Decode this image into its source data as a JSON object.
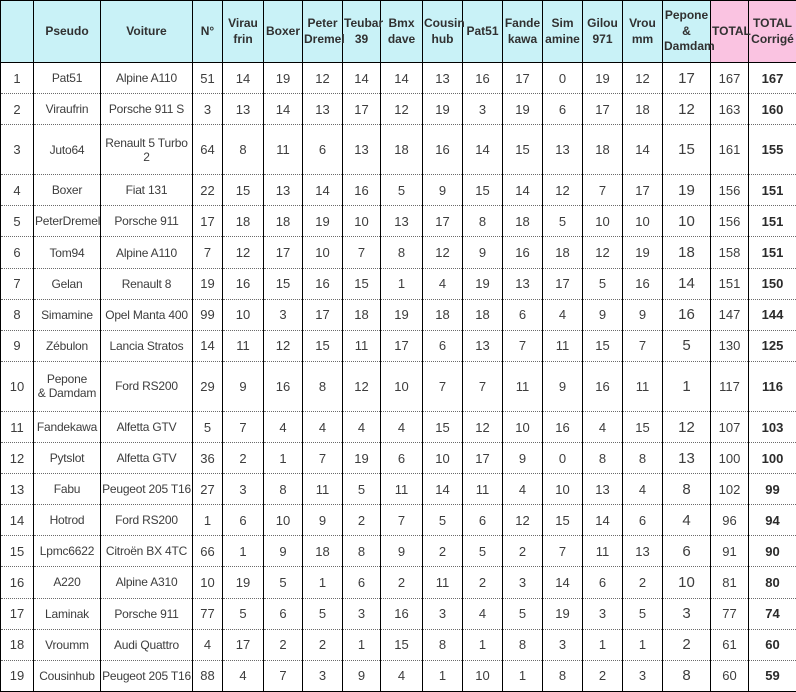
{
  "colors": {
    "header_cyan": "#c9f2f7",
    "header_pink": "#fac3e1"
  },
  "table": {
    "columns": [
      {
        "id": "rank",
        "label": ""
      },
      {
        "id": "pseudo",
        "label": "Pseudo"
      },
      {
        "id": "voiture",
        "label": "Voiture"
      },
      {
        "id": "num",
        "label": "N°"
      },
      {
        "id": "viraufrin",
        "label": "Virau\nfrin"
      },
      {
        "id": "boxer",
        "label": "Boxer"
      },
      {
        "id": "peterdremel",
        "label": "Peter\nDremel"
      },
      {
        "id": "teubar39",
        "label": "Teubar\n39"
      },
      {
        "id": "bmxdave",
        "label": "Bmx\ndave"
      },
      {
        "id": "cousinhub",
        "label": "Cousin\nhub"
      },
      {
        "id": "pat51",
        "label": "Pat51"
      },
      {
        "id": "fandekawa",
        "label": "Fande\nkawa"
      },
      {
        "id": "simamine",
        "label": "Sim\namine"
      },
      {
        "id": "gilou971",
        "label": "Gilou\n971"
      },
      {
        "id": "vroumm",
        "label": "Vrou\nmm"
      },
      {
        "id": "pepone-damdam",
        "label": "Pepone\n&\nDamdam"
      },
      {
        "id": "total",
        "label": "TOTAL"
      },
      {
        "id": "total-corrige",
        "label": "TOTAL\nCorrigé"
      }
    ],
    "rows": [
      {
        "rank": "1",
        "pseudo": "Pat51",
        "voiture": "Alpine A110",
        "num": "51",
        "votes": [
          "14",
          "19",
          "12",
          "14",
          "14",
          "13",
          "16",
          "17",
          "0",
          "19",
          "12",
          "17"
        ],
        "total": "167",
        "corrige": "167"
      },
      {
        "rank": "2",
        "pseudo": "Viraufrin",
        "voiture": "Porsche 911 S",
        "num": "3",
        "votes": [
          "13",
          "14",
          "13",
          "17",
          "12",
          "19",
          "3",
          "19",
          "6",
          "17",
          "18",
          "12"
        ],
        "total": "163",
        "corrige": "160"
      },
      {
        "rank": "3",
        "pseudo": "Juto64",
        "voiture": "Renault 5 Turbo 2",
        "num": "64",
        "votes": [
          "8",
          "11",
          "6",
          "13",
          "18",
          "16",
          "14",
          "15",
          "13",
          "18",
          "14",
          "15"
        ],
        "total": "161",
        "corrige": "155"
      },
      {
        "rank": "4",
        "pseudo": "Boxer",
        "voiture": "Fiat 131",
        "num": "22",
        "votes": [
          "15",
          "13",
          "14",
          "16",
          "5",
          "9",
          "15",
          "14",
          "12",
          "7",
          "17",
          "19"
        ],
        "total": "156",
        "corrige": "151"
      },
      {
        "rank": "5",
        "pseudo": "PeterDremel",
        "voiture": "Porsche 911",
        "num": "17",
        "votes": [
          "18",
          "18",
          "19",
          "10",
          "13",
          "17",
          "8",
          "18",
          "5",
          "10",
          "10",
          "10"
        ],
        "total": "156",
        "corrige": "151"
      },
      {
        "rank": "6",
        "pseudo": "Tom94",
        "voiture": "Alpine A110",
        "num": "7",
        "votes": [
          "12",
          "17",
          "10",
          "7",
          "8",
          "12",
          "9",
          "16",
          "18",
          "12",
          "19",
          "18"
        ],
        "total": "158",
        "corrige": "151"
      },
      {
        "rank": "7",
        "pseudo": "Gelan",
        "voiture": "Renault 8",
        "num": "19",
        "votes": [
          "16",
          "15",
          "16",
          "15",
          "1",
          "4",
          "19",
          "13",
          "17",
          "5",
          "16",
          "14"
        ],
        "total": "151",
        "corrige": "150"
      },
      {
        "rank": "8",
        "pseudo": "Simamine",
        "voiture": "Opel Manta 400",
        "num": "99",
        "votes": [
          "10",
          "3",
          "17",
          "18",
          "19",
          "18",
          "18",
          "6",
          "4",
          "9",
          "9",
          "16"
        ],
        "total": "147",
        "corrige": "144"
      },
      {
        "rank": "9",
        "pseudo": "Zébulon",
        "voiture": "Lancia Stratos",
        "num": "14",
        "votes": [
          "11",
          "12",
          "15",
          "11",
          "17",
          "6",
          "13",
          "7",
          "11",
          "15",
          "7",
          "5"
        ],
        "total": "130",
        "corrige": "125"
      },
      {
        "rank": "10",
        "pseudo": "Pepone\n& Damdam",
        "voiture": "Ford RS200",
        "num": "29",
        "votes": [
          "9",
          "16",
          "8",
          "12",
          "10",
          "7",
          "7",
          "11",
          "9",
          "16",
          "11",
          "1"
        ],
        "total": "117",
        "corrige": "116"
      },
      {
        "rank": "11",
        "pseudo": "Fandekawa",
        "voiture": "Alfetta GTV",
        "num": "5",
        "votes": [
          "7",
          "4",
          "4",
          "4",
          "4",
          "15",
          "12",
          "10",
          "16",
          "4",
          "15",
          "12"
        ],
        "total": "107",
        "corrige": "103"
      },
      {
        "rank": "12",
        "pseudo": "Pytslot",
        "voiture": "Alfetta GTV",
        "num": "36",
        "votes": [
          "2",
          "1",
          "7",
          "19",
          "6",
          "10",
          "17",
          "9",
          "0",
          "8",
          "8",
          "13"
        ],
        "total": "100",
        "corrige": "100"
      },
      {
        "rank": "13",
        "pseudo": "Fabu",
        "voiture": "Peugeot 205 T16",
        "num": "27",
        "votes": [
          "3",
          "8",
          "11",
          "5",
          "11",
          "14",
          "11",
          "4",
          "10",
          "13",
          "4",
          "8"
        ],
        "total": "102",
        "corrige": "99"
      },
      {
        "rank": "14",
        "pseudo": "Hotrod",
        "voiture": "Ford RS200",
        "num": "1",
        "votes": [
          "6",
          "10",
          "9",
          "2",
          "7",
          "5",
          "6",
          "12",
          "15",
          "14",
          "6",
          "4"
        ],
        "total": "96",
        "corrige": "94"
      },
      {
        "rank": "15",
        "pseudo": "Lpmc6622",
        "voiture": "Citroën BX 4TC",
        "num": "66",
        "votes": [
          "1",
          "9",
          "18",
          "8",
          "9",
          "2",
          "5",
          "2",
          "7",
          "11",
          "13",
          "6"
        ],
        "total": "91",
        "corrige": "90"
      },
      {
        "rank": "16",
        "pseudo": "A220",
        "voiture": "Alpine A310",
        "num": "10",
        "votes": [
          "19",
          "5",
          "1",
          "6",
          "2",
          "11",
          "2",
          "3",
          "14",
          "6",
          "2",
          "10"
        ],
        "total": "81",
        "corrige": "80"
      },
      {
        "rank": "17",
        "pseudo": "Laminak",
        "voiture": "Porsche 911",
        "num": "77",
        "votes": [
          "5",
          "6",
          "5",
          "3",
          "16",
          "3",
          "4",
          "5",
          "19",
          "3",
          "5",
          "3"
        ],
        "total": "77",
        "corrige": "74"
      },
      {
        "rank": "18",
        "pseudo": "Vroumm",
        "voiture": "Audi Quattro",
        "num": "4",
        "votes": [
          "17",
          "2",
          "2",
          "1",
          "15",
          "8",
          "1",
          "8",
          "3",
          "1",
          "1",
          "2"
        ],
        "total": "61",
        "corrige": "60"
      },
      {
        "rank": "19",
        "pseudo": "Cousinhub",
        "voiture": "Peugeot 205 T16",
        "num": "88",
        "votes": [
          "4",
          "7",
          "3",
          "9",
          "4",
          "1",
          "10",
          "1",
          "8",
          "2",
          "3",
          "8"
        ],
        "total": "60",
        "corrige": "59"
      }
    ]
  }
}
